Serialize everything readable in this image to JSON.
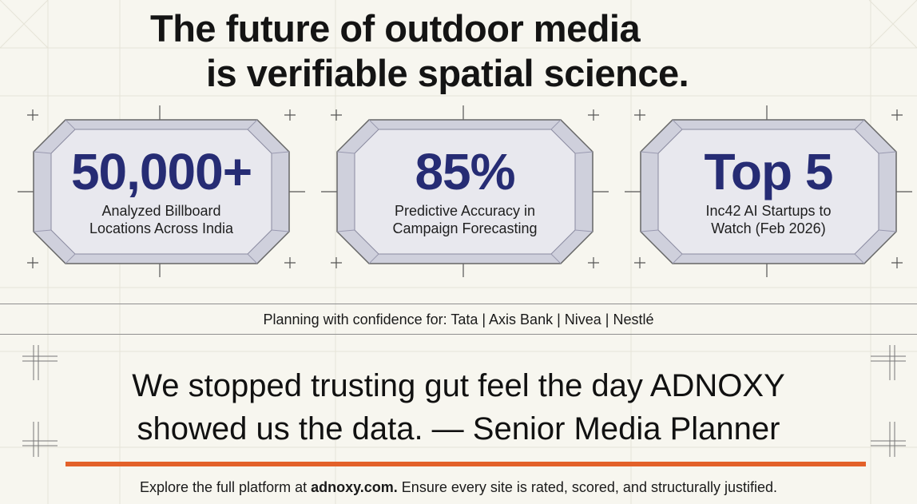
{
  "headline": {
    "line1": "The future of outdoor media",
    "line2": "is verifiable spatial science."
  },
  "stats": [
    {
      "value": "50,000+",
      "caption_line1": "Analyzed Billboard",
      "caption_line2": "Locations Across India"
    },
    {
      "value": "85%",
      "caption_line1": "Predictive Accuracy in",
      "caption_line2": "Campaign Forecasting"
    },
    {
      "value": "Top 5",
      "caption_line1": "Inc42 AI Startups to",
      "caption_line2": "Watch (Feb 2026)"
    }
  ],
  "trust_line": "Planning with confidence for: Tata | Axis Bank | Nivea | Nestlé",
  "quote": {
    "line1": "We stopped trusting gut feel the day ADNOXY",
    "line2": "showed us the data. — Senior Media Planner"
  },
  "footer": {
    "prefix": "Explore the full platform at ",
    "link": "adnoxy.com.",
    "suffix": " Ensure every site is rated, scored, and structurally justified."
  },
  "colors": {
    "background": "#f7f6ef",
    "stat_number": "#262c74",
    "accent_bar": "#e3612a",
    "gem_face": "#dcdde6"
  },
  "icons": [
    "crosshair-icon"
  ]
}
